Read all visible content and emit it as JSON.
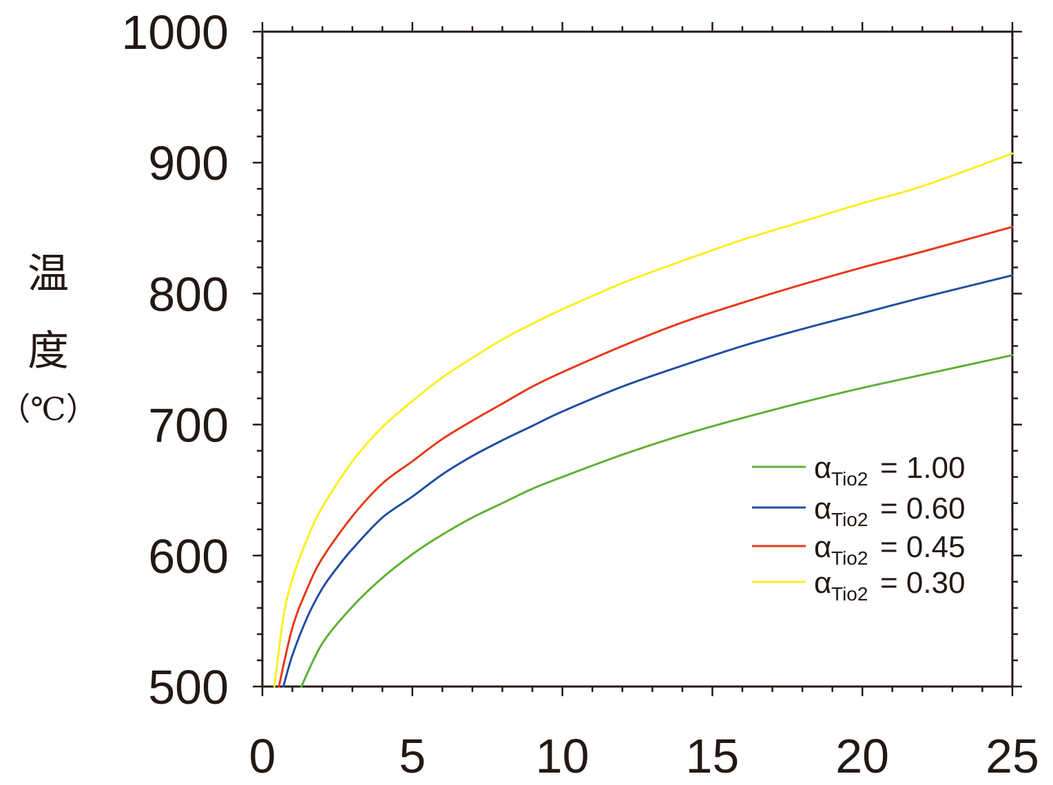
{
  "chart_data": {
    "type": "line",
    "title": "",
    "xlabel": "",
    "ylabel": "温度",
    "ylabel_unit": "（℃）",
    "xlim": [
      0,
      25
    ],
    "ylim": [
      500,
      1000
    ],
    "x_ticks": [
      "0",
      "5",
      "10",
      "15",
      "20",
      "25"
    ],
    "y_ticks": [
      "500",
      "600",
      "700",
      "800",
      "900",
      "1000"
    ],
    "grid": false,
    "legend_position": "right",
    "series": [
      {
        "name": "α_Tio2 = 1.00",
        "label_main": "α",
        "label_sub": "Tio2",
        "label_value": "= 1.00",
        "color": "#5db133",
        "x": [
          1.3,
          2,
          3,
          4,
          5,
          6,
          7,
          8,
          9,
          10,
          12,
          14,
          16,
          18,
          20,
          22,
          25
        ],
        "y": [
          500,
          533,
          561,
          583,
          601,
          616,
          629,
          640,
          651,
          660,
          677,
          692,
          705,
          717,
          728,
          738,
          753
        ]
      },
      {
        "name": "α_Tio2 = 0.60",
        "label_main": "α",
        "label_sub": "Tio2",
        "label_value": "= 0.60",
        "color": "#1f4ea3",
        "x": [
          0.7,
          1,
          1.5,
          2,
          2.5,
          3,
          4,
          5,
          6,
          7,
          8,
          9,
          10,
          12,
          14,
          16,
          18,
          20,
          22,
          25
        ],
        "y": [
          500,
          524,
          553,
          575,
          591,
          605,
          629,
          645,
          662,
          676,
          688,
          699,
          710,
          729,
          745,
          760,
          773,
          785,
          797,
          814
        ]
      },
      {
        "name": "α_Tio2 = 0.45",
        "label_main": "α",
        "label_sub": "Tio2",
        "label_value": "= 0.45",
        "color": "#e8381b",
        "x": [
          0.55,
          1,
          1.5,
          2,
          3,
          4,
          5,
          6,
          7,
          8,
          9,
          10,
          12,
          14,
          16,
          18,
          20,
          22,
          25
        ],
        "y": [
          500,
          545,
          575,
          598,
          630,
          655,
          672,
          689,
          703,
          716,
          729,
          740,
          760,
          778,
          793,
          807,
          820,
          832,
          851
        ]
      },
      {
        "name": "α_Tio2 = 0.30",
        "label_main": "α",
        "label_sub": "Tio2",
        "label_value": "= 0.30",
        "color": "#fcee21",
        "x": [
          0.4,
          0.7,
          1,
          1.5,
          2,
          3,
          4,
          5,
          6,
          7,
          8,
          9,
          10,
          12,
          14,
          16,
          18,
          20,
          22,
          25
        ],
        "y": [
          500,
          553,
          582,
          613,
          637,
          672,
          698,
          718,
          736,
          751,
          765,
          777,
          788,
          808,
          825,
          841,
          855,
          869,
          882,
          907
        ]
      }
    ]
  }
}
